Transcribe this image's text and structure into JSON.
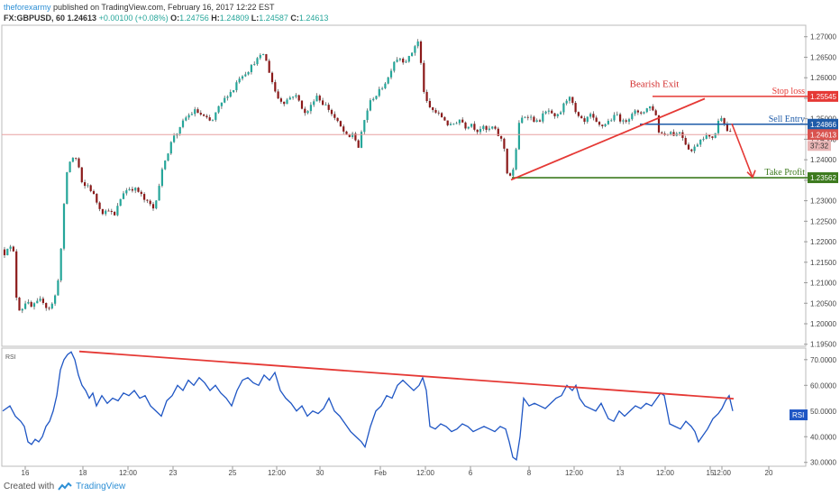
{
  "header": {
    "author": "theforexarmy",
    "published": "published on TradingView.com, February 16, 2017 12:22 EST",
    "symbol": "FX:GBPUSD, 60",
    "price": "1.24613",
    "change": "+0.00100 (+0.08%)",
    "o_label": "O:",
    "o": "1.24756",
    "h_label": "H:",
    "h": "1.24809",
    "l_label": "L:",
    "l": "1.24587",
    "c_label": "C:",
    "c": "1.24613"
  },
  "footer": {
    "created_with": "Created with",
    "brand": "TradingView"
  },
  "colors": {
    "up": "#26a69a",
    "down": "#8b1a1a",
    "wick": "#444444",
    "annotation_red": "#e53935",
    "entry_blue": "#1e5ba8",
    "profit_green": "#3d7a1e",
    "rsi": "#1f56c4",
    "current_price_line": "#e8a0a0"
  },
  "chart_data": [
    {
      "type": "candlestick",
      "yticks": [
        "1.27000",
        "1.26500",
        "1.26000",
        "1.25500",
        "1.25000",
        "1.24500",
        "1.24000",
        "1.23500",
        "1.23000",
        "1.22500",
        "1.22000",
        "1.21500",
        "1.21000",
        "1.20500",
        "1.20000",
        "1.19500"
      ],
      "xticks": [
        "16",
        "18",
        "12:00",
        "23",
        "25",
        "12:00",
        "30",
        "Feb",
        "12:00",
        "6",
        "8",
        "12:00",
        "13",
        "12:00",
        "15",
        "12:00",
        "20"
      ],
      "ylim": [
        1.1945,
        1.2728
      ],
      "series_path": [
        [
          0,
          1.2195
        ],
        [
          4,
          1.2185
        ],
        [
          8,
          1.217
        ],
        [
          12,
          1.219
        ],
        [
          18,
          1.218
        ],
        [
          22,
          1.205
        ],
        [
          26,
          1.203
        ],
        [
          32,
          1.2055
        ],
        [
          38,
          1.204
        ],
        [
          44,
          1.205
        ],
        [
          50,
          1.206
        ],
        [
          56,
          1.2035
        ],
        [
          62,
          1.205
        ],
        [
          66,
          1.208
        ],
        [
          70,
          1.215
        ],
        [
          74,
          1.228
        ],
        [
          78,
          1.238
        ],
        [
          82,
          1.24
        ],
        [
          86,
          1.241
        ],
        [
          90,
          1.239
        ],
        [
          95,
          1.233
        ],
        [
          100,
          1.234
        ],
        [
          106,
          1.232
        ],
        [
          112,
          1.229
        ],
        [
          118,
          1.227
        ],
        [
          124,
          1.228
        ],
        [
          130,
          1.226
        ],
        [
          136,
          1.23
        ],
        [
          140,
          1.232
        ],
        [
          146,
          1.233
        ],
        [
          152,
          1.233
        ],
        [
          158,
          1.232
        ],
        [
          164,
          1.23
        ],
        [
          170,
          1.229
        ],
        [
          174,
          1.228
        ],
        [
          178,
          1.232
        ],
        [
          182,
          1.236
        ],
        [
          186,
          1.24
        ],
        [
          190,
          1.242
        ],
        [
          196,
          1.246
        ],
        [
          202,
          1.247
        ],
        [
          208,
          1.25
        ],
        [
          214,
          1.251
        ],
        [
          220,
          1.252
        ],
        [
          226,
          1.251
        ],
        [
          232,
          1.25
        ],
        [
          238,
          1.249
        ],
        [
          244,
          1.252
        ],
        [
          250,
          1.254
        ],
        [
          256,
          1.256
        ],
        [
          262,
          1.257
        ],
        [
          268,
          1.26
        ],
        [
          274,
          1.261
        ],
        [
          280,
          1.262
        ],
        [
          286,
          1.264
        ],
        [
          292,
          1.265
        ],
        [
          296,
          1.266
        ],
        [
          300,
          1.263
        ],
        [
          304,
          1.26
        ],
        [
          308,
          1.257
        ],
        [
          312,
          1.255
        ],
        [
          318,
          1.254
        ],
        [
          324,
          1.255
        ],
        [
          330,
          1.256
        ],
        [
          336,
          1.254
        ],
        [
          342,
          1.251
        ],
        [
          348,
          1.253
        ],
        [
          354,
          1.256
        ],
        [
          360,
          1.254
        ],
        [
          366,
          1.253
        ],
        [
          372,
          1.251
        ],
        [
          378,
          1.249
        ],
        [
          384,
          1.247
        ],
        [
          390,
          1.245
        ],
        [
          396,
          1.247
        ],
        [
          400,
          1.242
        ],
        [
          404,
          1.246
        ],
        [
          408,
          1.25
        ],
        [
          412,
          1.253
        ],
        [
          416,
          1.255
        ],
        [
          422,
          1.256
        ],
        [
          428,
          1.258
        ],
        [
          434,
          1.26
        ],
        [
          440,
          1.264
        ],
        [
          446,
          1.265
        ],
        [
          452,
          1.264
        ],
        [
          458,
          1.265
        ],
        [
          464,
          1.268
        ],
        [
          468,
          1.269
        ],
        [
          470,
          1.264
        ],
        [
          474,
          1.256
        ],
        [
          478,
          1.253
        ],
        [
          484,
          1.252
        ],
        [
          490,
          1.251
        ],
        [
          496,
          1.25
        ],
        [
          502,
          1.248
        ],
        [
          508,
          1.249
        ],
        [
          514,
          1.25
        ],
        [
          520,
          1.248
        ],
        [
          526,
          1.249
        ],
        [
          532,
          1.247
        ],
        [
          538,
          1.248
        ],
        [
          544,
          1.247
        ],
        [
          550,
          1.248
        ],
        [
          556,
          1.246
        ],
        [
          562,
          1.244
        ],
        [
          566,
          1.237
        ],
        [
          570,
          1.236
        ],
        [
          574,
          1.238
        ],
        [
          578,
          1.248
        ],
        [
          582,
          1.25
        ],
        [
          588,
          1.251
        ],
        [
          594,
          1.25
        ],
        [
          600,
          1.249
        ],
        [
          606,
          1.251
        ],
        [
          612,
          1.252
        ],
        [
          618,
          1.25
        ],
        [
          624,
          1.251
        ],
        [
          630,
          1.254
        ],
        [
          636,
          1.256
        ],
        [
          640,
          1.252
        ],
        [
          646,
          1.25
        ],
        [
          652,
          1.249
        ],
        [
          658,
          1.251
        ],
        [
          664,
          1.249
        ],
        [
          670,
          1.248
        ],
        [
          676,
          1.249
        ],
        [
          682,
          1.25
        ],
        [
          688,
          1.251
        ],
        [
          694,
          1.249
        ],
        [
          700,
          1.25
        ],
        [
          706,
          1.252
        ],
        [
          712,
          1.251
        ],
        [
          718,
          1.252
        ],
        [
          724,
          1.253
        ],
        [
          730,
          1.252
        ],
        [
          734,
          1.247
        ],
        [
          740,
          1.246
        ],
        [
          746,
          1.247
        ],
        [
          752,
          1.246
        ],
        [
          758,
          1.247
        ],
        [
          764,
          1.244
        ],
        [
          770,
          1.242
        ],
        [
          774,
          1.243
        ],
        [
          780,
          1.245
        ],
        [
          786,
          1.246
        ],
        [
          792,
          1.245
        ],
        [
          798,
          1.247
        ],
        [
          802,
          1.251
        ],
        [
          806,
          1.25
        ],
        [
          810,
          1.247
        ]
      ],
      "levels": [
        {
          "label": "Stop loss",
          "value": 1.25545,
          "tag": "1.25545",
          "color": "#e53935"
        },
        {
          "label": "Sell Entry",
          "value": 1.24866,
          "tag": "1.24866",
          "color": "#1e5ba8"
        },
        {
          "label": "Take Profit",
          "value": 1.23562,
          "tag": "1.23562",
          "color": "#3d7a1e"
        }
      ],
      "current_price": {
        "value": 1.24613,
        "tag": "1.24613",
        "countdown": "37:32"
      },
      "annotations": {
        "bearish_exit": "Bearish Exit"
      }
    },
    {
      "type": "line",
      "name": "RSI",
      "yticks": [
        "70.0000",
        "60.0000",
        "50.0000",
        "40.0000",
        "30.0000"
      ],
      "ylim": [
        28.5,
        74.5
      ],
      "x": [
        0,
        8,
        14,
        20,
        24,
        28,
        32,
        36,
        40,
        44,
        48,
        52,
        56,
        60,
        64,
        68,
        72,
        76,
        80,
        84,
        88,
        92,
        96,
        100,
        104,
        110,
        116,
        122,
        128,
        134,
        140,
        146,
        152,
        158,
        164,
        170,
        176,
        182,
        188,
        194,
        200,
        206,
        212,
        218,
        224,
        230,
        236,
        242,
        248,
        254,
        260,
        266,
        272,
        278,
        284,
        290,
        296,
        302,
        308,
        314,
        320,
        326,
        332,
        338,
        344,
        350,
        356,
        362,
        368,
        374,
        380,
        386,
        392,
        398,
        402,
        408,
        414,
        420,
        426,
        432,
        438,
        444,
        450,
        456,
        462,
        466,
        470,
        474,
        480,
        486,
        492,
        498,
        504,
        510,
        516,
        522,
        528,
        534,
        540,
        546,
        552,
        558,
        562,
        566,
        570,
        574,
        578,
        584,
        590,
        596,
        602,
        608,
        614,
        620,
        626,
        632,
        636,
        640,
        646,
        652,
        658,
        664,
        668,
        672,
        678,
        684,
        690,
        696,
        702,
        708,
        714,
        720,
        726,
        730,
        734,
        740,
        746,
        752,
        758,
        764,
        768,
        772,
        776,
        782,
        788,
        794,
        798,
        802,
        806,
        810
      ],
      "values": [
        50,
        52,
        48,
        46,
        44,
        38,
        37,
        39,
        38,
        40,
        44,
        46,
        50,
        56,
        66,
        70,
        72,
        73,
        70,
        64,
        60,
        58,
        55,
        57,
        52,
        56,
        53,
        55,
        54,
        57,
        56,
        58,
        55,
        56,
        52,
        50,
        48,
        54,
        56,
        60,
        58,
        62,
        60,
        63,
        61,
        58,
        60,
        57,
        55,
        52,
        58,
        62,
        63,
        61,
        60,
        64,
        62,
        65,
        58,
        55,
        53,
        50,
        52,
        48,
        50,
        49,
        51,
        55,
        50,
        48,
        45,
        42,
        40,
        38,
        36,
        44,
        50,
        52,
        56,
        55,
        60,
        62,
        60,
        58,
        60,
        63,
        58,
        44,
        43,
        45,
        44,
        42,
        43,
        45,
        44,
        42,
        43,
        44,
        43,
        42,
        44,
        43,
        38,
        32,
        31,
        40,
        55,
        52,
        53,
        52,
        51,
        53,
        55,
        56,
        60,
        58,
        60,
        55,
        52,
        51,
        50,
        53,
        50,
        47,
        46,
        50,
        48,
        50,
        52,
        51,
        53,
        52,
        55,
        57,
        56,
        45,
        44,
        43,
        46,
        44,
        42,
        38,
        40,
        43,
        47,
        49,
        51,
        54,
        56,
        50
      ]
    }
  ]
}
